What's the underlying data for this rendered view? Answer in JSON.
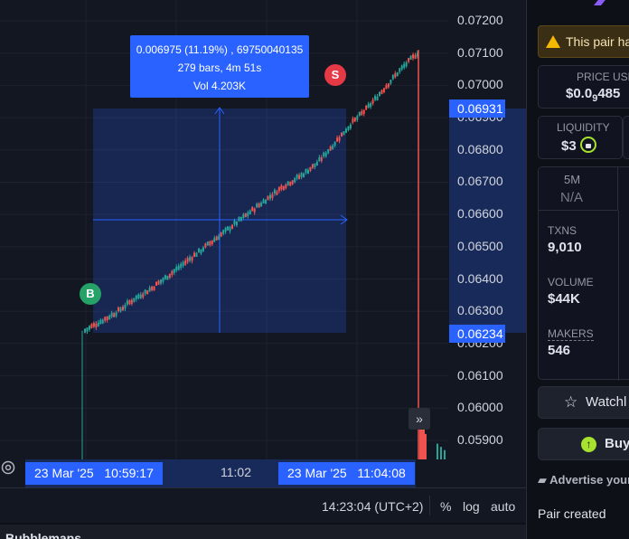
{
  "chart": {
    "price_ticks": [
      "0.07200",
      "0.07100",
      "0.07000",
      "0.06900",
      "0.06800",
      "0.06700",
      "0.06600",
      "0.06500",
      "0.06400",
      "0.06300",
      "0.06200",
      "0.06100",
      "0.06000",
      "0.05900"
    ],
    "range_high_tag": "0.06931",
    "range_low_tag": "0.06234",
    "tooltip": {
      "line1": "0.006975 (11.19%) , 69750040135",
      "line2": "279 bars, 4m 51s",
      "line3": "Vol 4.203K"
    },
    "buy_marker": "B",
    "sell_marker": "S",
    "time_start_tag": "23 Mar '25   10:59:17",
    "time_mid_label": "11:02",
    "time_end_tag": "23 Mar '25   11:04:08",
    "scroll_button": "»",
    "colors": {
      "accent": "#2962ff",
      "up": "#26a69a",
      "down": "#ef5350"
    }
  },
  "chart_data": {
    "type": "candlestick",
    "ylim": [
      0.0585,
      0.0725
    ],
    "x_range_labels": [
      "10:59:17",
      "11:02",
      "11:04:08"
    ],
    "measure": {
      "price_change": 0.006975,
      "percent_change": "11.19%",
      "bars": 279,
      "duration": "4m 51s",
      "volume": "4.203K",
      "from_price": 0.06234,
      "to_price": 0.06931
    },
    "trend": [
      [
        0.0,
        0.0624
      ],
      [
        0.05,
        0.0627
      ],
      [
        0.1,
        0.063
      ],
      [
        0.15,
        0.0634
      ],
      [
        0.2,
        0.0637
      ],
      [
        0.25,
        0.0641
      ],
      [
        0.3,
        0.0645
      ],
      [
        0.35,
        0.0649
      ],
      [
        0.4,
        0.0653
      ],
      [
        0.45,
        0.0657
      ],
      [
        0.5,
        0.0661
      ],
      [
        0.55,
        0.0665
      ],
      [
        0.6,
        0.0669
      ],
      [
        0.65,
        0.0672
      ],
      [
        0.7,
        0.0676
      ],
      [
        0.75,
        0.0682
      ],
      [
        0.8,
        0.0688
      ],
      [
        0.85,
        0.0693
      ],
      [
        0.9,
        0.0699
      ],
      [
        0.95,
        0.0705
      ],
      [
        1.0,
        0.071
      ]
    ],
    "final_drop_low": 0.059
  },
  "bottom_bar": {
    "clock": "14:23:04 (UTC+2)",
    "percent_btn": "%",
    "log_btn": "log",
    "auto_btn": "auto"
  },
  "below": {
    "bubblemaps_label": "Bubblemaps"
  },
  "sidebar": {
    "warning_text": "This pair ha",
    "price_label": "PRICE USD",
    "price_value_a": "$0.0",
    "price_value_sub": "9",
    "price_value_b": "485",
    "liquidity_label": "LIQUIDITY",
    "liquidity_value": "$3",
    "tf_label": "5M",
    "tf_value": "N/A",
    "txns_label": "TXNS",
    "txns_value": "9,010",
    "volume_label": "VOLUME",
    "volume_value": "$44K",
    "makers_label": "MAKERS",
    "makers_value": "546",
    "watchlist_label": "Watchl",
    "buy_label": "Buy",
    "advertise_label": "Advertise your",
    "pair_created_label": "Pair created"
  }
}
